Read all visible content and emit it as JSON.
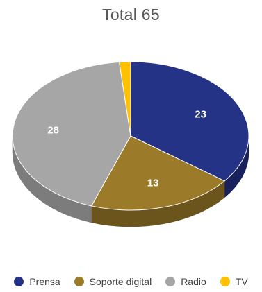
{
  "chart_data": {
    "type": "pie",
    "title": "Total 65",
    "categories": [
      "Prensa",
      "Soporte digital",
      "Radio",
      "TV"
    ],
    "values": [
      23,
      13,
      28,
      1
    ],
    "colors": [
      "#253386",
      "#9b7a2a",
      "#a6a6a6",
      "#ffc000"
    ],
    "side_colors": [
      "#18215c",
      "#6b551d",
      "#7c7c7c",
      "#bf9000"
    ],
    "data_labels": [
      "23",
      "13",
      "28",
      ""
    ],
    "legend_position": "bottom",
    "style": "3d"
  }
}
